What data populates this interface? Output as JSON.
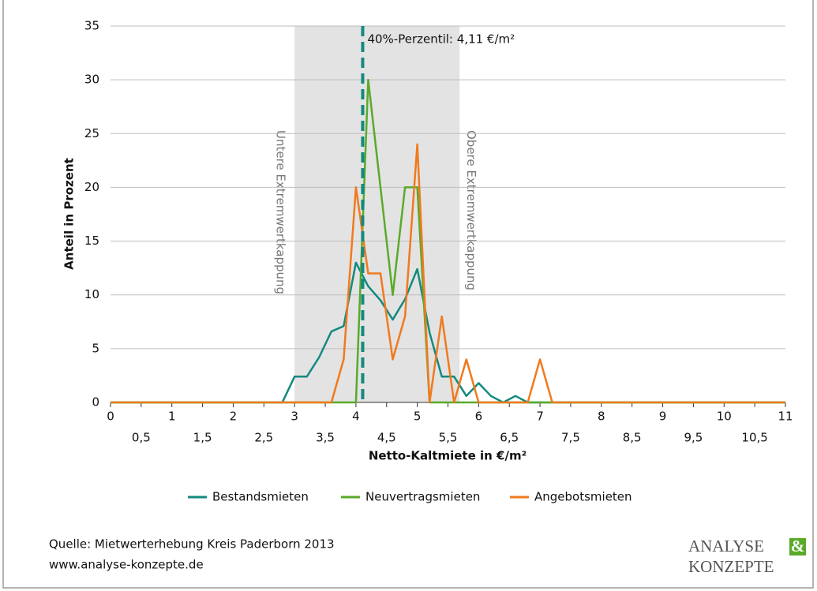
{
  "chart_data": {
    "type": "line",
    "y_label": "Anteil in Prozent",
    "x_label": "Netto-Kaltmiete in €/m²",
    "x": [
      0,
      0.2,
      0.4,
      0.6,
      0.8,
      1,
      1.2,
      1.4,
      1.6,
      1.8,
      2,
      2.2,
      2.4,
      2.6,
      2.8,
      3,
      3.2,
      3.4,
      3.6,
      3.8,
      4,
      4.2,
      4.4,
      4.6,
      4.8,
      5,
      5.2,
      5.4,
      5.6,
      5.8,
      6,
      6.2,
      6.4,
      6.6,
      6.8,
      7,
      7.2,
      7.4,
      7.6,
      7.8,
      8,
      8.2,
      8.4,
      8.6,
      8.8,
      9,
      9.2,
      9.4,
      9.6,
      9.8,
      10,
      10.2,
      10.4,
      10.6,
      10.8,
      11
    ],
    "series": [
      {
        "name": "Bestandsmieten",
        "color": "#138a7e",
        "values": [
          0,
          0,
          0,
          0,
          0,
          0,
          0,
          0,
          0,
          0,
          0,
          0,
          0,
          0,
          0,
          2.4,
          2.4,
          4.2,
          6.6,
          7.1,
          13,
          10.8,
          9.5,
          7.7,
          9.6,
          12.4,
          6.5,
          2.4,
          2.4,
          0.6,
          1.8,
          0.6,
          0,
          0.6,
          0,
          0,
          0,
          0,
          0,
          0,
          0,
          0,
          0,
          0,
          0,
          0,
          0,
          0,
          0,
          0,
          0,
          0,
          0,
          0,
          0,
          0
        ]
      },
      {
        "name": "Neuvertragsmieten",
        "color": "#5aaa2a",
        "values": [
          0,
          0,
          0,
          0,
          0,
          0,
          0,
          0,
          0,
          0,
          0,
          0,
          0,
          0,
          0,
          0,
          0,
          0,
          0,
          0,
          0,
          30,
          20,
          10,
          20,
          20,
          0,
          0,
          0,
          0,
          0,
          0,
          0,
          0,
          0,
          0,
          0,
          0,
          0,
          0,
          0,
          0,
          0,
          0,
          0,
          0,
          0,
          0,
          0,
          0,
          0,
          0,
          0,
          0,
          0,
          0
        ]
      },
      {
        "name": "Angebotsmieten",
        "color": "#f07a1e",
        "values": [
          0,
          0,
          0,
          0,
          0,
          0,
          0,
          0,
          0,
          0,
          0,
          0,
          0,
          0,
          0,
          0,
          0,
          0,
          0,
          4,
          20,
          12,
          12,
          4,
          8,
          24,
          0,
          8,
          0,
          4,
          0,
          0,
          0,
          0,
          0,
          4,
          0,
          0,
          0,
          0,
          0,
          0,
          0,
          0,
          0,
          0,
          0,
          0,
          0,
          0,
          0,
          0,
          0,
          0,
          0,
          0
        ]
      }
    ],
    "xlim": [
      0,
      11
    ],
    "xticks": [
      0,
      1,
      2,
      3,
      4,
      5,
      6,
      7,
      8,
      9,
      10,
      11,
      {
        "value": 0.5,
        "label": "0,5"
      },
      {
        "value": 1.5,
        "label": "1,5"
      },
      {
        "value": 2.5,
        "label": "2,5"
      },
      {
        "value": 3.5,
        "label": "3,5"
      },
      {
        "value": 4.5,
        "label": "4,5"
      },
      {
        "value": 5.5,
        "label": "5,5"
      },
      {
        "value": 6.5,
        "label": "6,5"
      },
      {
        "value": 7.5,
        "label": "7,5"
      },
      {
        "value": 8.5,
        "label": "8,5"
      },
      {
        "value": 9.5,
        "label": "9,5"
      },
      {
        "value": 10.5,
        "label": "10,5"
      }
    ],
    "ylim": [
      0,
      35
    ],
    "yticks": [
      0,
      5,
      10,
      15,
      20,
      25,
      30,
      35
    ],
    "grid": true,
    "shade": {
      "from": 3,
      "to": 5.69,
      "color": "#e3e3e3",
      "lower_label": "Untere Extremwertkappung",
      "upper_label": "Obere Extremwertkappung"
    },
    "percentile": {
      "value": 4.11,
      "label": "40%-Perzentil: 4,11 €/m²",
      "color": "#138a7e"
    }
  },
  "footer": {
    "source": "Quelle: Mietwerterhebung Kreis Paderborn 2013",
    "url": "www.analyse-konzepte.de",
    "logo": {
      "line1": "ANALYSE",
      "amp": "&",
      "line2": "KONZEPTE"
    }
  }
}
